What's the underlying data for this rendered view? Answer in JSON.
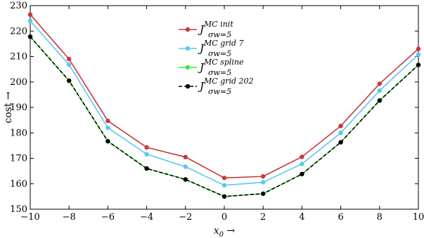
{
  "chart_data": {
    "type": "line",
    "xlabel": "x_0 →",
    "ylabel": "cost →",
    "xlim": [
      -10,
      10
    ],
    "ylim": [
      150,
      230
    ],
    "xticks": [
      -10,
      -8,
      -6,
      -4,
      -2,
      0,
      2,
      4,
      6,
      8,
      10
    ],
    "yticks": [
      150,
      160,
      170,
      180,
      190,
      200,
      210,
      220,
      230
    ],
    "grid": false,
    "legend_position": "top-center",
    "x": [
      -10,
      -8,
      -6,
      -4,
      -2,
      0,
      2,
      4,
      6,
      8,
      10
    ],
    "series": [
      {
        "name": "J^{MC init}_{σw=5}",
        "legend": {
          "base": "J",
          "sup": "MC init",
          "sub": "σw=5"
        },
        "color": "#c8393a",
        "line_style": "solid",
        "marker_color": "#c8393a",
        "values": [
          226.5,
          209.0,
          184.7,
          174.3,
          170.5,
          162.3,
          162.9,
          170.6,
          182.7,
          199.3,
          213.0
        ]
      },
      {
        "name": "J^{MC grid 7}_{σw=5}",
        "legend": {
          "base": "J",
          "sup": "MC grid 7",
          "sub": "σw=5"
        },
        "color": "#5bc8f0",
        "line_style": "solid",
        "marker_color": "#5bc8f0",
        "values": [
          224.0,
          206.8,
          182.0,
          171.6,
          166.7,
          159.4,
          160.6,
          167.8,
          180.0,
          196.6,
          210.8
        ]
      },
      {
        "name": "J^{MC spline}_{σw=5}",
        "legend": {
          "base": "J",
          "sup": "MC spline",
          "sub": "σw=5"
        },
        "color": "#39e639",
        "line_style": "solid",
        "marker_color": "#39e639",
        "values": [
          217.8,
          200.5,
          176.7,
          166.0,
          161.7,
          155.0,
          156.1,
          163.8,
          176.3,
          192.7,
          206.7
        ]
      },
      {
        "name": "J^{MC grid 202}_{σw=5}",
        "legend": {
          "base": "J",
          "sup": "MC grid 202",
          "sub": "σw=5"
        },
        "color": "#000000",
        "line_style": "dashed",
        "marker_color": "#000000",
        "values": [
          217.8,
          200.5,
          176.7,
          166.0,
          161.7,
          155.0,
          156.1,
          163.8,
          176.3,
          192.7,
          206.7
        ]
      }
    ]
  }
}
